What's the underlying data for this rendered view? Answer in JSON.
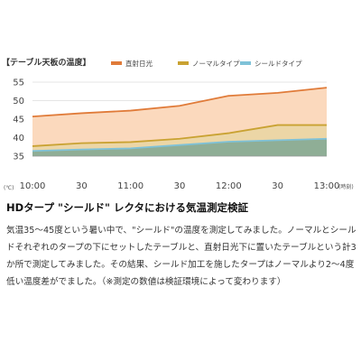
{
  "chart_data": {
    "type": "area",
    "title": "【テーブル天板の温度】",
    "categories": [
      "10:00",
      "30",
      "11:00",
      "30",
      "12:00",
      "30",
      "13:00"
    ],
    "x_unit": "(時刻)",
    "y_unit": "(℃)",
    "y_ticks": [
      35,
      40,
      45,
      50,
      55
    ],
    "ylim": [
      35,
      55
    ],
    "legend_position": "top-right",
    "series": [
      {
        "name": "直射日光",
        "color": "#e07b39",
        "fill": "#fbd9bd",
        "values": [
          45.7,
          46.6,
          47.3,
          48.6,
          51.3,
          52.1,
          53.5
        ]
      },
      {
        "name": "ノーマルタイプ",
        "color": "#c9a232",
        "fill": "#ecd6a6",
        "values": [
          37.7,
          38.5,
          38.8,
          39.7,
          41.2,
          43.4,
          43.4
        ]
      },
      {
        "name": "シールドタイプ",
        "color": "#7fc2d8",
        "fill": "#8fae96",
        "values": [
          36.4,
          36.8,
          37.1,
          38.0,
          38.9,
          39.3,
          39.7
        ]
      }
    ]
  },
  "headline": "HDタープ \"シールド\" レクタにおける気温測定検証",
  "body": "気温35〜45度という暑い中で、\"シールド\"の温度を測定してみました。ノーマルとシールドそれぞれのタープの下にセットしたテーブルと、直射日光下に置いたテーブルという計3か所で測定してみました。その結果、シールド加工を施したタープはノーマルより2〜4度低い温度差がでました。（※測定の数値は検証環境によって変わります）"
}
